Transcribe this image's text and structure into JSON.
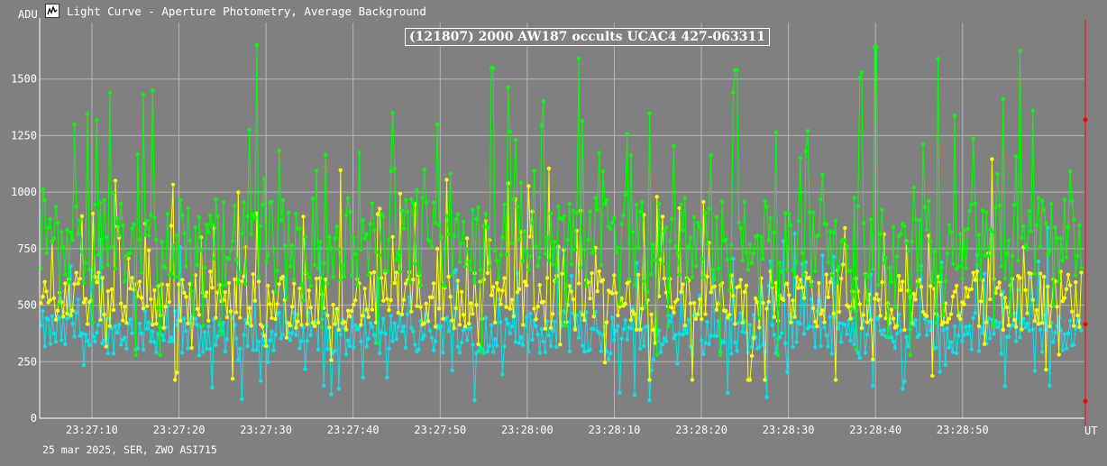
{
  "window": {
    "title": "Light Curve - Aperture Photometry, Average Background",
    "icon": "light-curve-app-icon"
  },
  "footer": {
    "text": "25 mar 2025, SER, ZWO ASI715"
  },
  "chart_data": {
    "type": "line",
    "title": "(121807) 2000 AW187 occults UCAC4 427-063311",
    "xlabel": "UT",
    "ylabel": "ADU",
    "x_range": [
      "23:27:04",
      "23:29:04"
    ],
    "x_ticks": [
      "23:27:10",
      "23:27:20",
      "23:27:30",
      "23:27:40",
      "23:27:50",
      "23:28:00",
      "23:28:10",
      "23:28:20",
      "23:28:30",
      "23:28:40",
      "23:28:50"
    ],
    "y_ticks": [
      0,
      250,
      500,
      750,
      1000,
      1250,
      1500
    ],
    "ylim": [
      0,
      1750
    ],
    "grid": true,
    "legend": "none",
    "series": [
      {
        "color": "#00ff00",
        "mean": 780,
        "range": [
          280,
          1650
        ],
        "peaks": [
          {
            "x": "23:27:08",
            "y": 1300
          },
          {
            "x": "23:27:12",
            "y": 1440
          },
          {
            "x": "23:27:17",
            "y": 1450
          },
          {
            "x": "23:27:29",
            "y": 1650
          },
          {
            "x": "23:27:56",
            "y": 1550
          },
          {
            "x": "23:28:06",
            "y": 1590
          },
          {
            "x": "23:28:24",
            "y": 1540
          },
          {
            "x": "23:28:40",
            "y": 1640
          },
          {
            "x": "23:28:58",
            "y": 1360
          }
        ]
      },
      {
        "color": "#ffff00",
        "mean": 520,
        "range": [
          170,
          1150
        ]
      },
      {
        "color": "#00e5ee",
        "mean": 380,
        "range": [
          80,
          880
        ]
      }
    ],
    "cursor_line": {
      "color": "#ff0000",
      "x": "23:29:04",
      "marker_values": [
        1320,
        415,
        75
      ]
    }
  }
}
